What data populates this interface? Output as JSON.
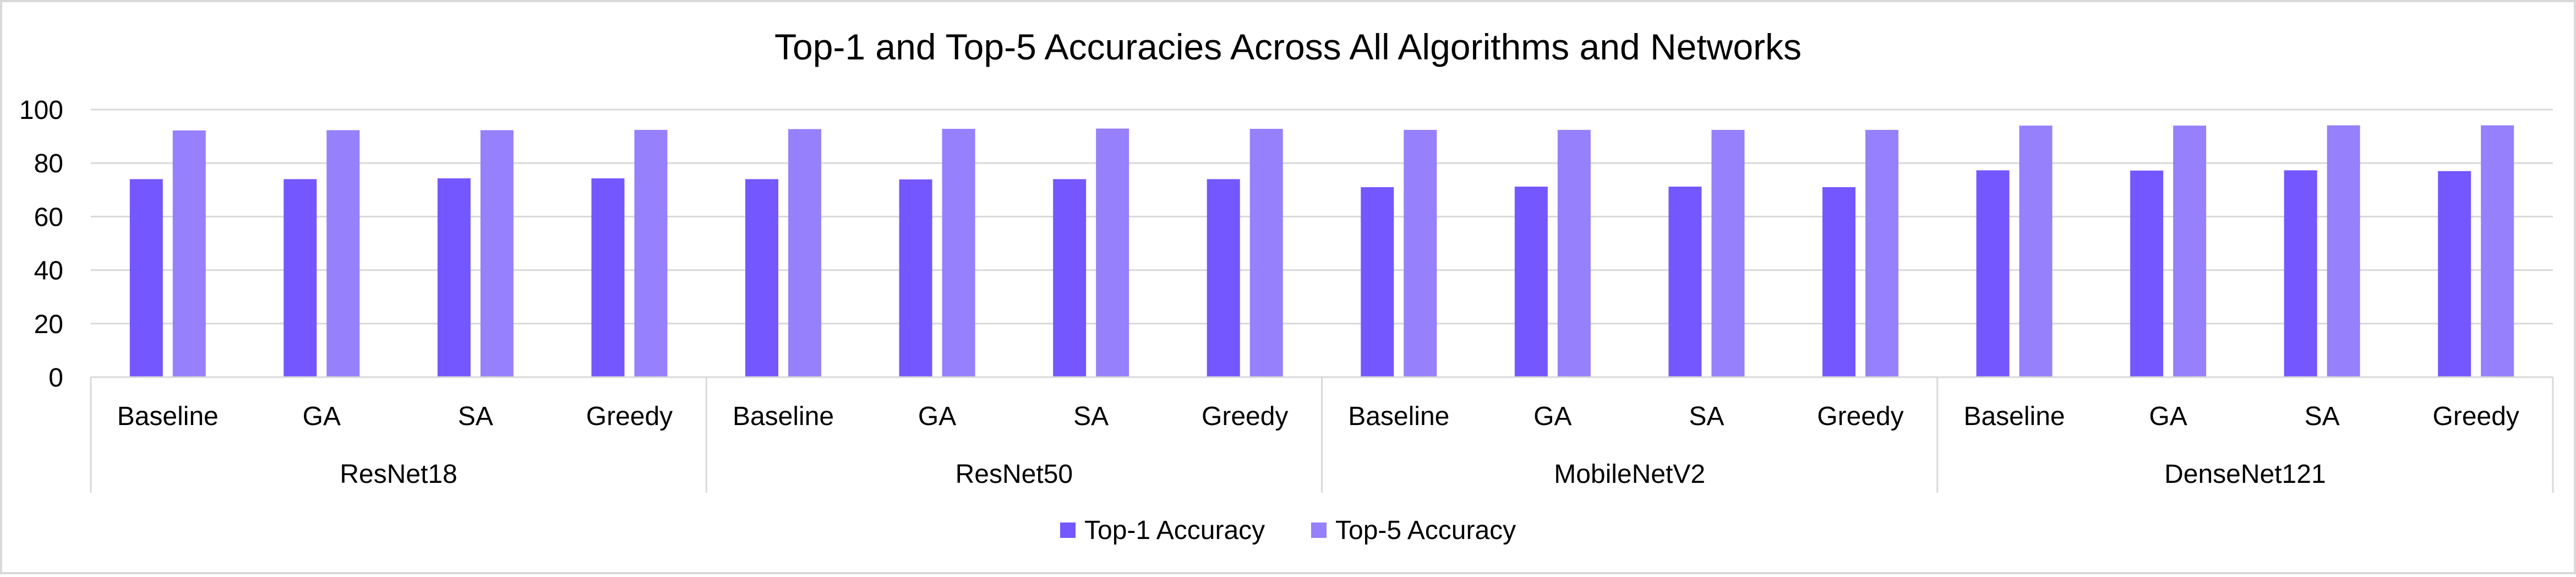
{
  "chart_data": {
    "type": "bar",
    "title": "Top-1 and Top-5 Accuracies Across All Algorithms and Networks",
    "xlabel": "",
    "ylabel": "",
    "ylim": [
      0,
      100
    ],
    "yticks": [
      0,
      20,
      40,
      60,
      80,
      100
    ],
    "grid": true,
    "legend_position": "bottom",
    "groups": [
      "ResNet18",
      "ResNet50",
      "MobileNetV2",
      "DenseNet121"
    ],
    "categories": [
      "Baseline",
      "GA",
      "SA",
      "Greedy"
    ],
    "series": [
      {
        "name": "Top-1 Accuracy",
        "color": "#7457fe",
        "values": [
          [
            74.0,
            74.0,
            74.3,
            74.3
          ],
          [
            74.0,
            73.9,
            74.0,
            74.0
          ],
          [
            71.0,
            71.2,
            71.2,
            71.0
          ],
          [
            77.3,
            77.2,
            77.3,
            77.0
          ]
        ]
      },
      {
        "name": "Top-5 Accuracy",
        "color": "#9680fb",
        "values": [
          [
            92.2,
            92.3,
            92.3,
            92.4
          ],
          [
            92.7,
            92.8,
            92.9,
            92.8
          ],
          [
            92.4,
            92.4,
            92.4,
            92.4
          ],
          [
            94.0,
            94.0,
            94.1,
            94.1
          ]
        ]
      }
    ]
  }
}
